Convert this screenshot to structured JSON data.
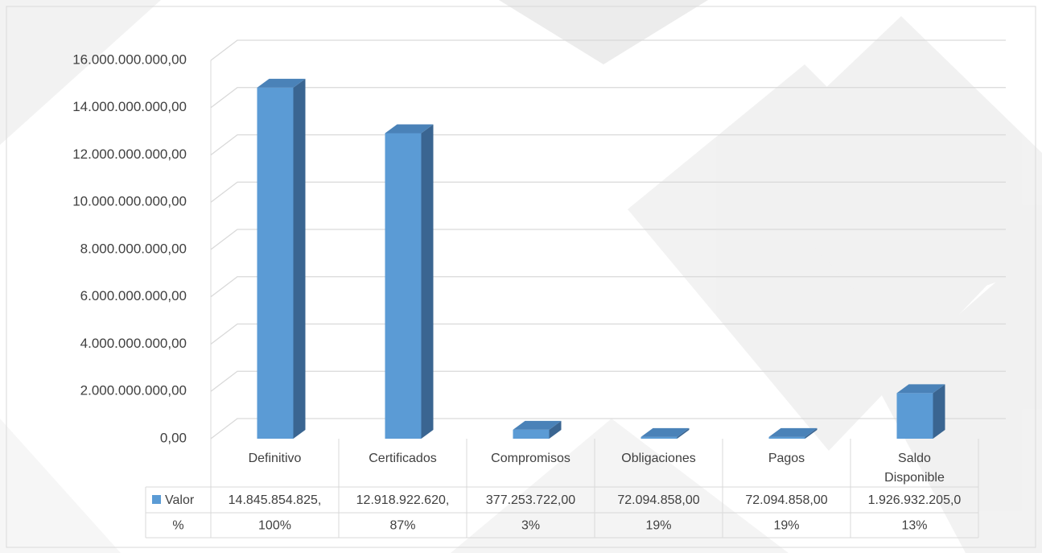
{
  "chart_data": {
    "type": "bar3d",
    "categories": [
      "Definitivo",
      "Certificados",
      "Compromisos",
      "Obligaciones",
      "Pagos",
      "Saldo Disponible"
    ],
    "series": [
      {
        "name": "Valor",
        "color": "#5b9bd5",
        "values": [
          14845854825,
          12918922620,
          377253722,
          72094858,
          72094858,
          1926932205
        ],
        "value_labels": [
          "14.845.854.825,",
          "12.918.922.620,",
          "377.253.722,00",
          "72.094.858,00",
          "72.094.858,00",
          "1.926.932.205,0"
        ]
      }
    ],
    "percent_row": {
      "label": "%",
      "cells": [
        "100%",
        "87%",
        "3%",
        "19%",
        "19%",
        "13%"
      ]
    },
    "ylim": [
      0,
      16000000000
    ],
    "yticks": [
      {
        "value": 0,
        "label": "0,00"
      },
      {
        "value": 2000000000,
        "label": "2.000.000.000,00"
      },
      {
        "value": 4000000000,
        "label": "4.000.000.000,00"
      },
      {
        "value": 6000000000,
        "label": "6.000.000.000,00"
      },
      {
        "value": 8000000000,
        "label": "8.000.000.000,00"
      },
      {
        "value": 10000000000,
        "label": "10.000.000.000,00"
      },
      {
        "value": 12000000000,
        "label": "12.000.000.000,00"
      },
      {
        "value": 14000000000,
        "label": "14.000.000.000,00"
      },
      {
        "value": 16000000000,
        "label": "16.000.000.000,00"
      }
    ],
    "grid": true
  }
}
